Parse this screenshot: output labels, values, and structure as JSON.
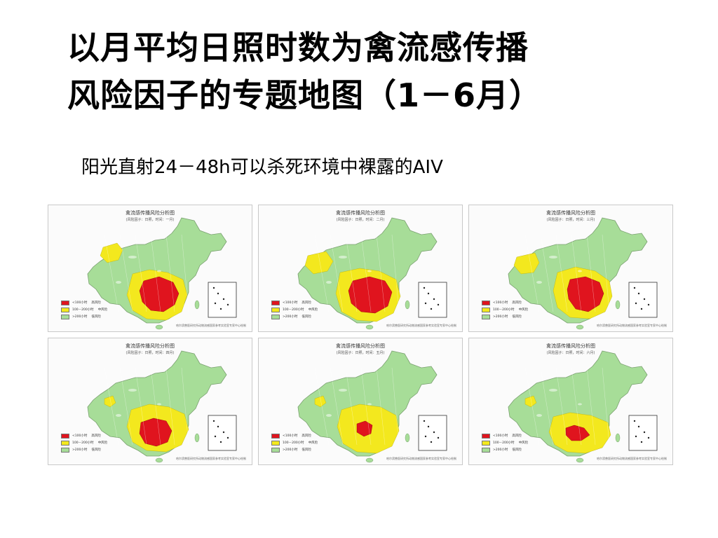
{
  "title": {
    "line1": "以月平均日照时数为禽流感传播",
    "line2": "风险因子的专题地图（1－6月）"
  },
  "subtitle": "阳光直射24－48h可以杀死环境中裸露的AIV",
  "colors": {
    "high": "#e0141e",
    "medium": "#f3e81e",
    "low": "#a7dd98",
    "inset_border": "#333333"
  },
  "map_panels": [
    {
      "title": "禽流感传播风险分析图",
      "subtitle": "(风险因子：日照，时间：一月)",
      "risk_level_shown": "high-red-southwest-center"
    },
    {
      "title": "禽流感传播风险分析图",
      "subtitle": "(风险因子：日照，时间：二月)",
      "risk_level_shown": "high-red-southwest-center"
    },
    {
      "title": "禽流感传播风险分析图",
      "subtitle": "(风险因子：日照，时间：三月)",
      "risk_level_shown": "high-red-south-center"
    },
    {
      "title": "禽流感传播风险分析图",
      "subtitle": "(风险因子：日照，时间：四月)",
      "risk_level_shown": "high-red-southwest"
    },
    {
      "title": "禽流感传播风险分析图",
      "subtitle": "(风险因子：日照，时间：五月)",
      "risk_level_shown": "high-red-small-southwest"
    },
    {
      "title": "禽流感传播风险分析图",
      "subtitle": "(风险因子：日照，时间：六月)",
      "risk_level_shown": "high-red-small-south"
    }
  ],
  "legend": [
    {
      "range": "<100小时",
      "level": "高风险",
      "color_key": "high"
    },
    {
      "range": "100－200小时",
      "level": "中风险",
      "color_key": "medium"
    },
    {
      "range": ">200小时",
      "level": "低风险",
      "color_key": "low"
    }
  ],
  "footer": "哈尔滨兽医研究所动物流感国家参考实验室专家中心绘制"
}
